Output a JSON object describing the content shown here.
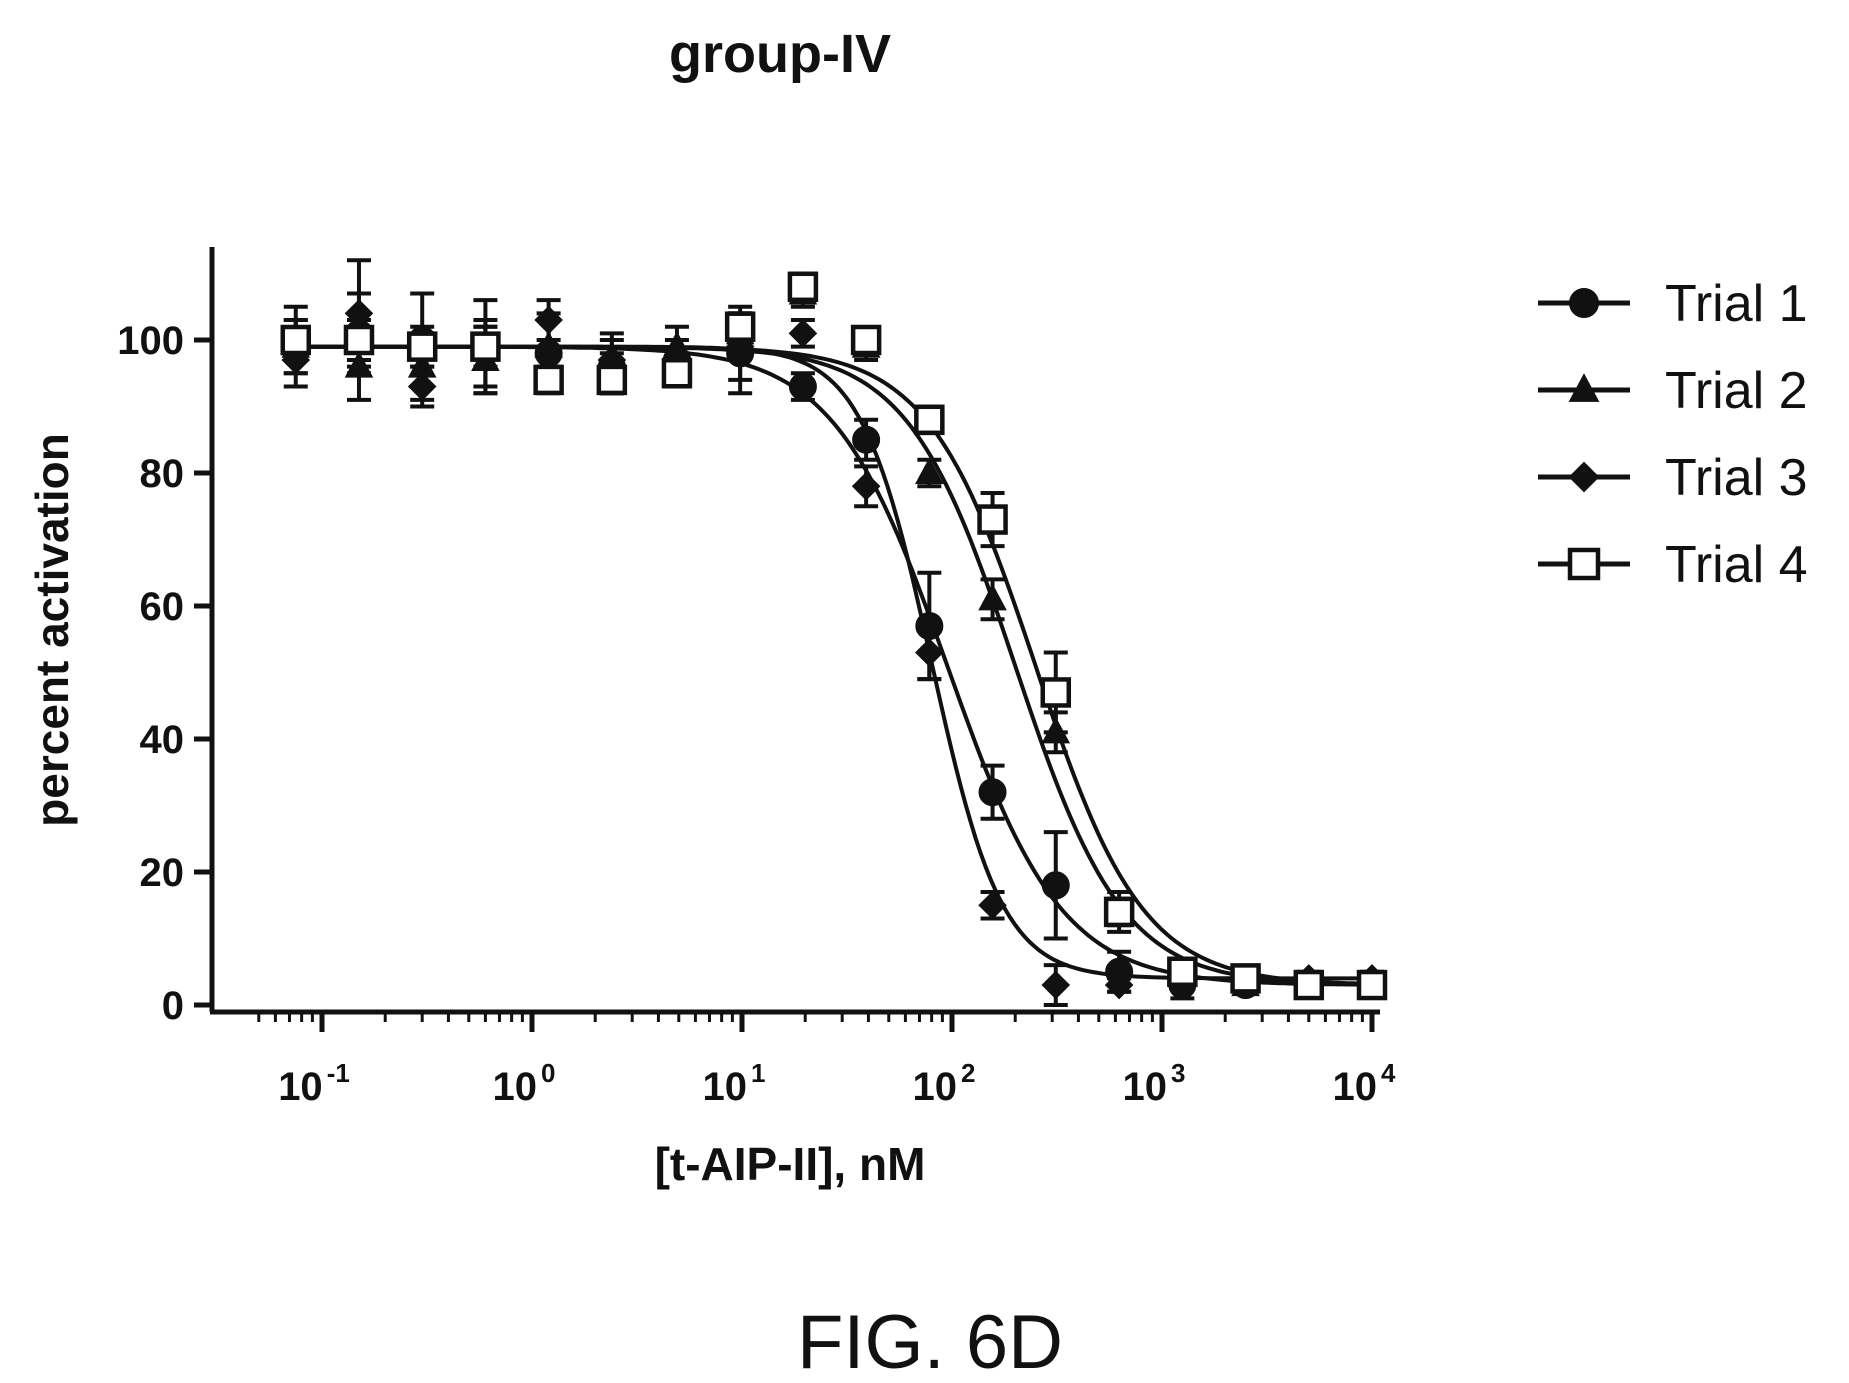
{
  "figure_caption": "FIG. 6D",
  "chart_data": {
    "type": "scatter",
    "title": "group-IV",
    "xlabel": "[t-AIP-II], nM",
    "ylabel": "percent activation",
    "xscale": "log",
    "xlim": [
      0.05,
      10000
    ],
    "ylim": [
      0,
      112
    ],
    "x_ticks": [
      {
        "base": "10",
        "exp": "-1",
        "value": 0.1
      },
      {
        "base": "10",
        "exp": "0",
        "value": 1
      },
      {
        "base": "10",
        "exp": "1",
        "value": 10
      },
      {
        "base": "10",
        "exp": "2",
        "value": 100
      },
      {
        "base": "10",
        "exp": "3",
        "value": 1000
      },
      {
        "base": "10",
        "exp": "4",
        "value": 10000
      }
    ],
    "y_ticks": [
      0,
      20,
      40,
      60,
      80,
      100
    ],
    "grid": false,
    "legend": "right",
    "series": [
      {
        "name": "Trial 1",
        "marker": "circle",
        "fit": {
          "top": 99,
          "bottom": 3,
          "ic50": 95,
          "hill": 1.6
        },
        "x": [
          0.075,
          0.15,
          0.3,
          0.6,
          1.2,
          2.4,
          4.9,
          9.8,
          19.5,
          39,
          78,
          156,
          312,
          625,
          1250,
          2500,
          5000,
          10000
        ],
        "y": [
          100,
          101,
          100,
          99,
          98,
          96,
          97,
          98,
          93,
          85,
          57,
          32,
          18,
          5,
          3,
          3,
          3,
          3
        ],
        "err": [
          5,
          6,
          7,
          7,
          5,
          4,
          3,
          6,
          2,
          3,
          8,
          4,
          8,
          3,
          2,
          1,
          1,
          1
        ]
      },
      {
        "name": "Trial 2",
        "marker": "triangle",
        "fit": {
          "top": 99,
          "bottom": 3,
          "ic50": 200,
          "hill": 1.7
        },
        "x": [
          0.075,
          0.15,
          0.3,
          0.6,
          1.2,
          2.4,
          4.9,
          9.8,
          19.5,
          39,
          78,
          156,
          312,
          625,
          1250,
          2500,
          5000,
          10000
        ],
        "y": [
          99,
          96,
          96,
          97,
          99,
          95,
          99,
          101,
          107,
          99,
          80,
          61,
          41,
          14,
          5,
          3,
          3,
          3
        ],
        "err": [
          4,
          5,
          5,
          5,
          5,
          3,
          3,
          3,
          2,
          2,
          2,
          3,
          3,
          2,
          1,
          1,
          1,
          1
        ]
      },
      {
        "name": "Trial 3",
        "marker": "diamond",
        "fit": {
          "top": 99,
          "bottom": 4,
          "ic50": 80,
          "hill": 2.6
        },
        "x": [
          0.075,
          0.15,
          0.3,
          0.6,
          1.2,
          2.4,
          4.9,
          9.8,
          19.5,
          39,
          78,
          156,
          312,
          625,
          1250,
          2500,
          5000,
          10000
        ],
        "y": [
          97,
          104,
          93,
          98,
          103,
          97,
          96,
          99,
          101,
          78,
          53,
          15,
          3,
          3,
          4,
          3,
          4,
          4
        ],
        "err": [
          4,
          8,
          3,
          5,
          3,
          4,
          2,
          5,
          2,
          3,
          4,
          2,
          3,
          1,
          1,
          1,
          1,
          1
        ]
      },
      {
        "name": "Trial 4",
        "marker": "square-open",
        "fit": {
          "top": 99,
          "bottom": 3,
          "ic50": 250,
          "hill": 1.7
        },
        "x": [
          0.075,
          0.15,
          0.3,
          0.6,
          1.2,
          2.4,
          4.9,
          9.8,
          19.5,
          39,
          78,
          156,
          312,
          625,
          1250,
          2500,
          5000,
          10000
        ],
        "y": [
          100,
          100,
          99,
          99,
          94,
          94,
          95,
          102,
          108,
          100,
          88,
          73,
          47,
          14,
          5,
          4,
          3,
          3
        ],
        "err": [
          3,
          3,
          3,
          3,
          2,
          2,
          2,
          3,
          2,
          1,
          2,
          4,
          6,
          3,
          1,
          1,
          1,
          1
        ]
      }
    ]
  }
}
